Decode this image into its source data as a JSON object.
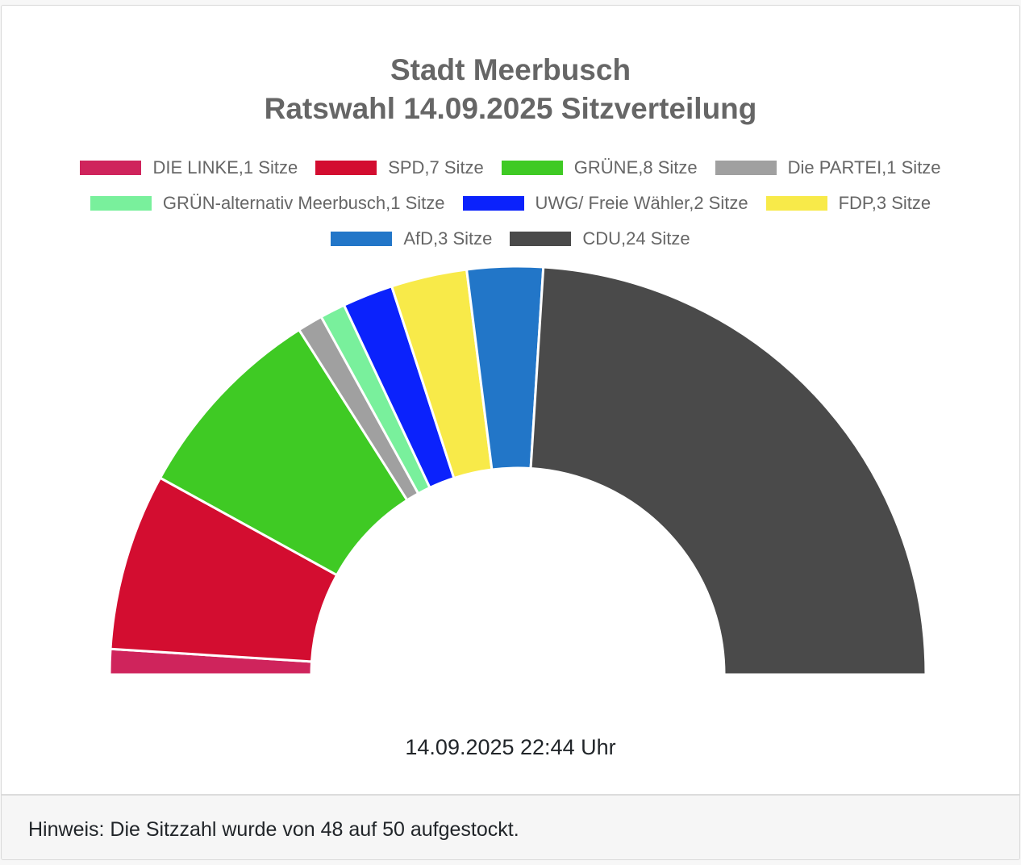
{
  "chart_data": {
    "type": "pie",
    "subtype": "half-donut (parliament seat distribution)",
    "title": "Stadt Meerbusch",
    "subtitle": "Ratswahl 14.09.2025 Sitzverteilung",
    "categories": [
      "DIE LINKE",
      "SPD",
      "GRÜNE",
      "Die PARTEI",
      "GRÜN-alternativ Meerbusch",
      "UWG/ Freie Wähler",
      "FDP",
      "AfD",
      "CDU"
    ],
    "values": [
      1,
      7,
      8,
      1,
      1,
      2,
      3,
      3,
      24
    ],
    "colors": [
      "#cf245c",
      "#d30d30",
      "#3fca24",
      "#a0a0a0",
      "#79f09c",
      "#0b22fc",
      "#f8ea49",
      "#2276c8",
      "#4a4a4a"
    ],
    "unit": "Sitze",
    "total": 50,
    "legend_position": "top",
    "legend": [
      "DIE LINKE,1 Sitze",
      "SPD,7 Sitze",
      "GRÜNE,8 Sitze",
      "Die PARTEI,1 Sitze",
      "GRÜN-alternativ Meerbusch,1 Sitze",
      "UWG/ Freie Wähler,2 Sitze",
      "FDP,3 Sitze",
      "AfD,3 Sitze",
      "CDU,24 Sitze"
    ]
  },
  "header": {
    "title_line1": "Stadt Meerbusch",
    "title_line2": "Ratswahl 14.09.2025 Sitzverteilung"
  },
  "legend_rows": [
    [
      {
        "label": "DIE LINKE,1 Sitze",
        "color": "#cf245c"
      },
      {
        "label": "SPD,7 Sitze",
        "color": "#d30d30"
      },
      {
        "label": "GRÜNE,8 Sitze",
        "color": "#3fca24"
      },
      {
        "label": "Die PARTEI,1 Sitze",
        "color": "#a0a0a0"
      }
    ],
    [
      {
        "label": "GRÜN-alternativ Meerbusch,1 Sitze",
        "color": "#79f09c"
      },
      {
        "label": "UWG/ Freie Wähler,2 Sitze",
        "color": "#0b22fc"
      },
      {
        "label": "FDP,3 Sitze",
        "color": "#f8ea49"
      }
    ],
    [
      {
        "label": "AfD,3 Sitze",
        "color": "#2276c8"
      },
      {
        "label": "CDU,24 Sitze",
        "color": "#4a4a4a"
      }
    ]
  ],
  "timestamp": "14.09.2025 22:44 Uhr",
  "footer": {
    "note": "Hinweis: Die Sitzzahl wurde von 48 auf 50 aufgestockt."
  }
}
